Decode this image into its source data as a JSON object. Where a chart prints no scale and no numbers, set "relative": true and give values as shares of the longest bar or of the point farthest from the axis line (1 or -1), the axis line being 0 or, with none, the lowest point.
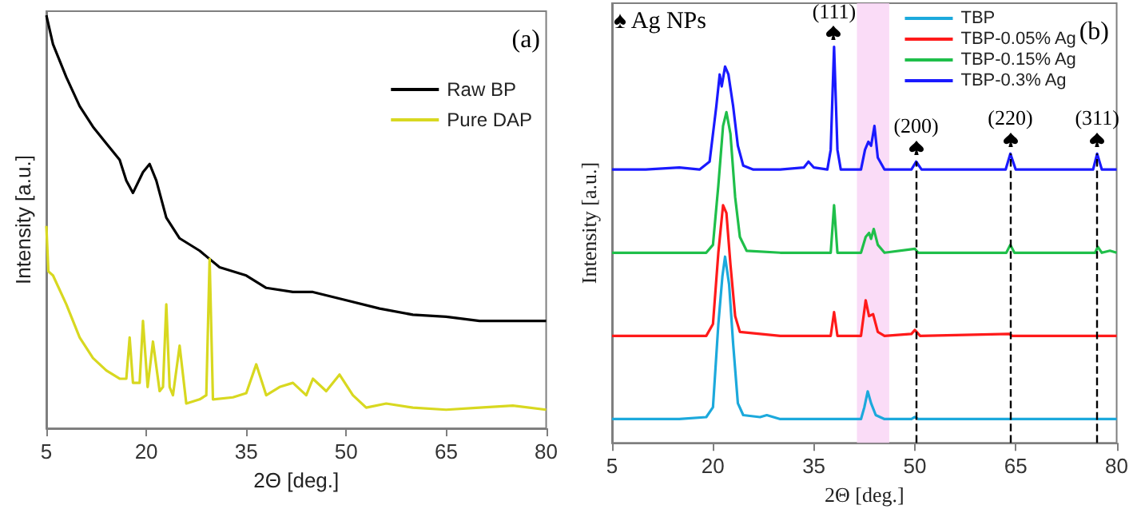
{
  "chart_data": [
    {
      "type": "line",
      "relative": true,
      "xlabel": "2Θ [deg.]",
      "ylabel": "Intensity [a.u.]",
      "xlim": [
        5,
        80
      ],
      "xticks": [
        5,
        20,
        35,
        50,
        65,
        80
      ],
      "legend": "top right",
      "grid": false,
      "marker": "none",
      "line_style": "solid",
      "annotations": [
        "(a)"
      ],
      "series": [
        {
          "name": "Raw BP",
          "color": "#000000",
          "x": [
            5,
            6,
            8,
            10,
            12,
            14,
            16,
            17,
            18,
            19.5,
            20.5,
            21.5,
            23,
            25,
            28,
            31,
            35,
            38,
            42,
            45,
            50,
            55,
            60,
            65,
            70,
            75,
            80
          ],
          "values": [
            1.0,
            0.93,
            0.85,
            0.78,
            0.73,
            0.69,
            0.65,
            0.6,
            0.57,
            0.62,
            0.64,
            0.6,
            0.51,
            0.46,
            0.43,
            0.39,
            0.37,
            0.34,
            0.33,
            0.33,
            0.31,
            0.29,
            0.275,
            0.27,
            0.26,
            0.26,
            0.26
          ]
        },
        {
          "name": "Pure DAP",
          "color": "#d8d820",
          "x": [
            5,
            5.3,
            6,
            8,
            10,
            12,
            14,
            16,
            17,
            17.5,
            18,
            19,
            19.5,
            20.2,
            21,
            22,
            22.5,
            23,
            23.5,
            24,
            25,
            26,
            28,
            29,
            29.5,
            30,
            33,
            35,
            36.5,
            38,
            40,
            42,
            44,
            45,
            47,
            49,
            51,
            53,
            56,
            60,
            65,
            70,
            75,
            80
          ],
          "values": [
            0.49,
            0.38,
            0.37,
            0.3,
            0.22,
            0.17,
            0.14,
            0.12,
            0.12,
            0.22,
            0.11,
            0.11,
            0.26,
            0.1,
            0.21,
            0.09,
            0.1,
            0.3,
            0.1,
            0.08,
            0.2,
            0.06,
            0.07,
            0.08,
            0.41,
            0.07,
            0.075,
            0.085,
            0.155,
            0.08,
            0.1,
            0.11,
            0.08,
            0.12,
            0.09,
            0.13,
            0.08,
            0.05,
            0.06,
            0.05,
            0.045,
            0.05,
            0.055,
            0.045
          ]
        }
      ]
    },
    {
      "type": "line",
      "relative": true,
      "xlabel": "2Θ [deg.]",
      "ylabel": "Intensity [a.u.]",
      "xlim": [
        5,
        80
      ],
      "xticks": [
        5,
        20,
        35,
        50,
        65,
        80
      ],
      "legend": "top right",
      "grid": false,
      "marker": "none",
      "line_style": "solid",
      "annotations": [
        "♠ Ag NPs",
        "(b)",
        {
          "text": "(111)",
          "x": 38,
          "y": 1.0
        },
        {
          "text": "(200)",
          "x": 50.2,
          "y": 0.71
        },
        {
          "text": "(220)",
          "x": 64.2,
          "y": 0.73
        },
        {
          "text": "(311)",
          "x": 77.1,
          "y": 0.73
        }
      ],
      "ref_lines": [
        {
          "axis": "x",
          "value": 50.2,
          "color": "#000000",
          "line_style": "dashed"
        },
        {
          "axis": "x",
          "value": 64.2,
          "color": "#000000",
          "line_style": "dashed"
        },
        {
          "axis": "x",
          "value": 77.1,
          "color": "#000000",
          "line_style": "dashed"
        }
      ],
      "bands": [
        {
          "axis": "x",
          "from": 41.4,
          "to": 46.2,
          "color": "#f9d3f5"
        }
      ],
      "series": [
        {
          "name": "TBP",
          "color": "#1ca9dc",
          "x": [
            5,
            15,
            19,
            20,
            20.8,
            21.4,
            21.8,
            22.4,
            23,
            23.7,
            24.5,
            27,
            28,
            30,
            42,
            42.5,
            43,
            43.5,
            44.2,
            45.5,
            49.5,
            50,
            50.5,
            80
          ],
          "values": [
            0.06,
            0.06,
            0.065,
            0.09,
            0.3,
            0.42,
            0.47,
            0.4,
            0.25,
            0.1,
            0.07,
            0.065,
            0.07,
            0.06,
            0.06,
            0.09,
            0.13,
            0.1,
            0.07,
            0.06,
            0.06,
            0.065,
            0.06,
            0.06
          ]
        },
        {
          "name": "TBP-0.05% Ag",
          "color": "#ff1a1a",
          "x": [
            5,
            15,
            19,
            20,
            20.8,
            21.5,
            22,
            22.6,
            23.3,
            24,
            30,
            37.5,
            38,
            38.5,
            42,
            42.7,
            43.2,
            43.8,
            44.5,
            45.5,
            49.5,
            50,
            50.8,
            64,
            64.5,
            80
          ],
          "values": [
            0.27,
            0.27,
            0.27,
            0.3,
            0.48,
            0.6,
            0.58,
            0.45,
            0.32,
            0.28,
            0.27,
            0.27,
            0.33,
            0.27,
            0.27,
            0.36,
            0.32,
            0.325,
            0.28,
            0.27,
            0.275,
            0.285,
            0.27,
            0.275,
            0.27,
            0.27
          ]
        },
        {
          "name": "TBP-0.15% Ag",
          "color": "#1fbf4a",
          "x": [
            5,
            15,
            19,
            20,
            20.8,
            21.5,
            22,
            22.6,
            23.3,
            24,
            25,
            30,
            37.5,
            38,
            38.5,
            42,
            42.7,
            43.2,
            43.5,
            43.9,
            44.5,
            45.5,
            50,
            50.5,
            63.6,
            64.2,
            64.8,
            76.8,
            77.2,
            77.8,
            79,
            80
          ],
          "values": [
            0.48,
            0.48,
            0.48,
            0.5,
            0.65,
            0.8,
            0.835,
            0.78,
            0.62,
            0.52,
            0.485,
            0.48,
            0.48,
            0.6,
            0.48,
            0.48,
            0.52,
            0.53,
            0.515,
            0.54,
            0.5,
            0.48,
            0.49,
            0.48,
            0.48,
            0.5,
            0.48,
            0.48,
            0.495,
            0.48,
            0.485,
            0.48
          ]
        },
        {
          "name": "TBP-0.3% Ag",
          "color": "#1a1aff",
          "x": [
            5,
            10,
            15,
            18,
            19.5,
            20.5,
            21,
            21.3,
            21.8,
            22.3,
            23,
            23.7,
            24.5,
            26,
            30,
            33.5,
            34.2,
            35,
            37,
            37.5,
            38,
            38.5,
            39,
            42,
            42.6,
            43.1,
            43.5,
            44,
            44.5,
            45.5,
            49.5,
            50.2,
            51,
            63.5,
            64.2,
            65,
            76.5,
            77.1,
            77.8,
            80
          ],
          "values": [
            0.69,
            0.69,
            0.695,
            0.69,
            0.71,
            0.85,
            0.93,
            0.9,
            0.95,
            0.93,
            0.85,
            0.75,
            0.7,
            0.69,
            0.69,
            0.695,
            0.71,
            0.695,
            0.69,
            0.74,
            1.0,
            0.74,
            0.69,
            0.69,
            0.74,
            0.76,
            0.75,
            0.8,
            0.72,
            0.69,
            0.69,
            0.71,
            0.69,
            0.69,
            0.73,
            0.69,
            0.69,
            0.73,
            0.69,
            0.69
          ]
        }
      ]
    }
  ]
}
